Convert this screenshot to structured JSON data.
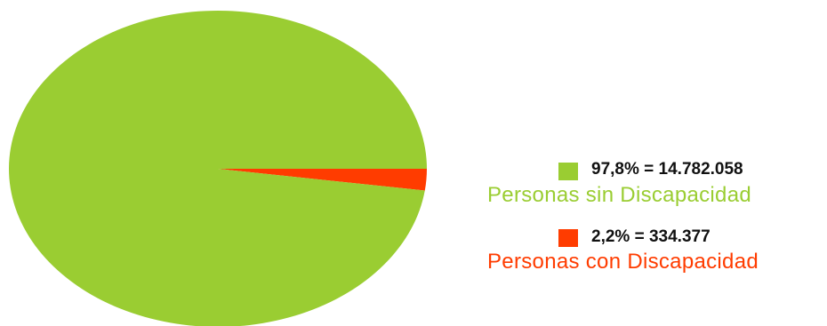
{
  "chart_data": {
    "type": "pie",
    "slices": [
      {
        "label": "Personas sin Discapacidad",
        "value_text": "97,8% = 14.782.058",
        "percent": 97.8,
        "count": 14782058,
        "color": "#9acd32"
      },
      {
        "label": "Personas con Discapacidad",
        "value_text": "2,2% = 334.377",
        "percent": 2.2,
        "count": 334377,
        "color": "#ff3c00"
      }
    ],
    "legend_position": "right"
  }
}
